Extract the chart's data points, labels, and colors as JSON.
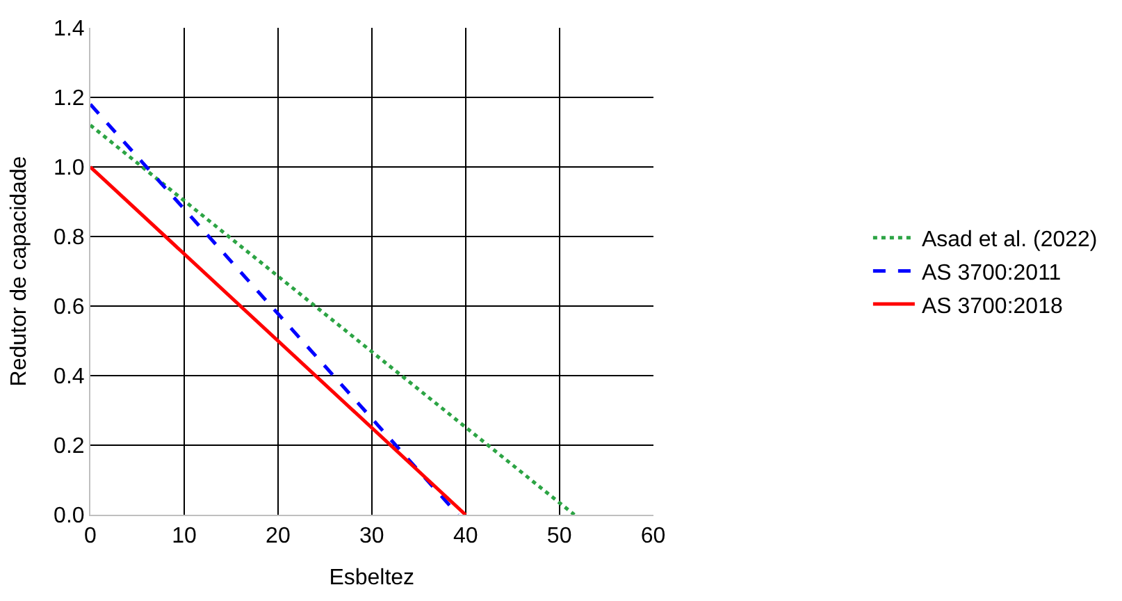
{
  "chart_data": {
    "type": "line",
    "xlabel": "Esbeltez",
    "ylabel": "Redutor de capacidade",
    "xlim": [
      0,
      60
    ],
    "xticks": [
      0,
      10,
      20,
      30,
      40,
      50,
      60
    ],
    "ylim": [
      0,
      1.4
    ],
    "yticks": [
      {
        "value": 0,
        "label": "0.0"
      },
      0.2,
      0.4,
      0.6,
      0.8,
      {
        "value": 1,
        "label": "1.0"
      },
      1.2,
      1.4
    ],
    "grid": true,
    "legend": "right",
    "marker": "none",
    "series": [
      {
        "name": "Asad et al. (2022)",
        "color": "#2ca444",
        "line_style": "dotted",
        "x": [
          0,
          51.6
        ],
        "values": [
          1.12,
          0
        ]
      },
      {
        "name": "AS 3700:2011",
        "color": "#0000ff",
        "line_style": "dashed",
        "x": [
          0,
          39.2
        ],
        "values": [
          1.18,
          0
        ]
      },
      {
        "name": "AS 3700:2018",
        "color": "#ff0000",
        "line_style": "solid",
        "x": [
          0,
          40
        ],
        "values": [
          1.0,
          0
        ]
      }
    ]
  }
}
